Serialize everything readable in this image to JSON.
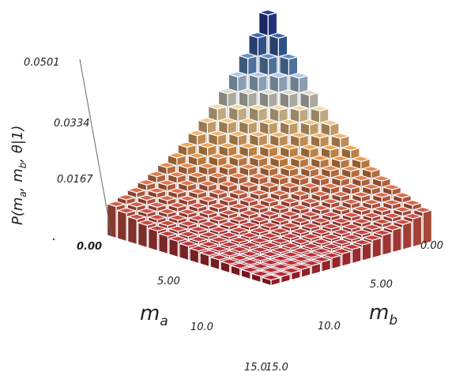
{
  "chart_data": {
    "type": "3d-bar",
    "x_axis": {
      "label_main": "m",
      "label_sub": "a",
      "tick_labels": [
        "0.00",
        "5.00",
        "10.0",
        "15.0"
      ],
      "range": [
        0,
        15
      ]
    },
    "y_axis": {
      "label_main": "m",
      "label_sub": "b",
      "tick_labels": [
        "0.00",
        "5.00",
        "10.0",
        "15.0"
      ],
      "range": [
        0,
        15
      ]
    },
    "z_axis": {
      "label": "P(m_a, m_b, θ|1)",
      "label_parts": [
        "P(m",
        "a",
        ", m",
        "b",
        ", θ|1)"
      ],
      "tick_labels": [
        "0.00",
        "0.0167",
        "0.0334",
        "0.0501"
      ],
      "range": [
        0,
        0.0501
      ]
    },
    "grid_size": 16,
    "distribution": "P(m_a, m_b) = 0.0501 · 0.89^(m_a + m_b), highest at m_a = m_b = 0 and falling off along both axes",
    "peak_value": 0.0501,
    "colormap": [
      {
        "stop": 0.0,
        "color": "#b2182b"
      },
      {
        "stop": 0.18,
        "color": "#d6604d"
      },
      {
        "stop": 0.38,
        "color": "#f0a050"
      },
      {
        "stop": 0.55,
        "color": "#f7d9a0"
      },
      {
        "stop": 0.68,
        "color": "#c6dbef"
      },
      {
        "stop": 0.82,
        "color": "#4a7fbd"
      },
      {
        "stop": 1.0,
        "color": "#2a3f9e"
      }
    ],
    "grid_line_color": "#ffffff"
  }
}
